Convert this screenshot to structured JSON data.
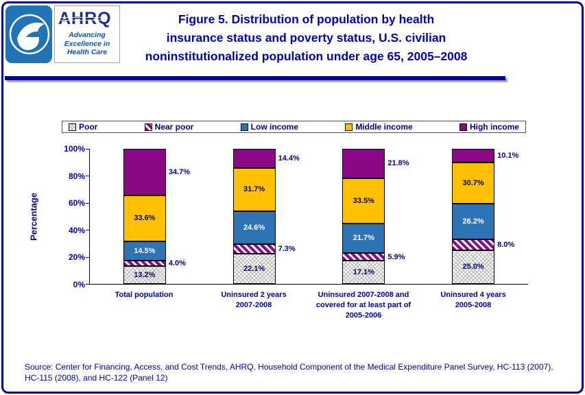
{
  "header": {
    "title_lines": [
      "Figure 5. Distribution of population by health",
      "insurance status and poverty status, U.S. civilian",
      "noninstitutionalized population under age 65, 2005–2008"
    ]
  },
  "logos": {
    "ahrq_name": "AHRQ",
    "ahrq_tagline": [
      "Advancing",
      "Excellence in",
      "Health Care"
    ]
  },
  "footer": {
    "source_lines": [
      "Source: Center for Financing, Access, and Cost Trends, AHRQ, Household Component of the Medical Expenditure Panel Survey, HC-113 (2007),",
      "HC-115 (2008), and HC-122 (Panel 12)"
    ]
  },
  "colors": {
    "frame": "#000099",
    "title_text": "#0000A8",
    "body_text": "#000080",
    "poor": "#FFFFFF",
    "near_poor": "#8A0886",
    "low_income": "#2E74B5",
    "middle_income": "#FFC000",
    "high_income": "#8A0886"
  },
  "chart_data": {
    "type": "bar",
    "stacked": true,
    "units": "percent",
    "grid": false,
    "legend_position": "top",
    "title": "Figure 5. Distribution of population by health insurance status and poverty status, U.S. civilian noninstitutionalized population under age 65, 2005–2008",
    "xlabel": "",
    "ylabel": "Percentage",
    "ylim": [
      0,
      100
    ],
    "ytick_labels": [
      "0%",
      "20%",
      "40%",
      "60%",
      "80%",
      "100%"
    ],
    "categories": [
      "Total population",
      "Uninsured 2 years 2007-2008",
      "Uninsured 2007-2008 and covered for at least part of 2005-2006",
      "Uninsured 4 years 2005-2008"
    ],
    "category_lines": [
      [
        "Total population"
      ],
      [
        "Uninsured 2 years",
        "2007-2008"
      ],
      [
        "Uninsured 2007-2008 and",
        "covered for at least part of",
        "2005-2006"
      ],
      [
        "Uninsured 4 years",
        "2005-2008"
      ]
    ],
    "series": [
      {
        "name": "Poor",
        "values": [
          13.2,
          22.1,
          17.1,
          25.0
        ],
        "color": "#FFFFFF",
        "pattern": "crosshatch",
        "hatch_color": "#B0B0B0",
        "label_placement": "inside",
        "label_color": "#000080"
      },
      {
        "name": "Near poor",
        "values": [
          4.0,
          7.3,
          5.9,
          8.0
        ],
        "color": "#8A0886",
        "pattern": "stripes",
        "hatch_color": "#FFFFFF",
        "label_placement": "outside",
        "label_color": "#000080"
      },
      {
        "name": "Low income",
        "values": [
          14.5,
          24.6,
          21.7,
          26.2
        ],
        "color": "#2E74B5",
        "pattern": null,
        "hatch_color": null,
        "label_placement": "inside",
        "label_color": "#FFFFFF"
      },
      {
        "name": "Middle income",
        "values": [
          33.6,
          31.7,
          33.5,
          30.7
        ],
        "color": "#FFC000",
        "pattern": null,
        "hatch_color": null,
        "label_placement": "inside",
        "label_color": "#000080"
      },
      {
        "name": "High income",
        "values": [
          34.7,
          14.4,
          21.8,
          10.1
        ],
        "color": "#8A0886",
        "pattern": null,
        "hatch_color": null,
        "label_placement": "outside",
        "label_color": "#000080"
      }
    ]
  }
}
